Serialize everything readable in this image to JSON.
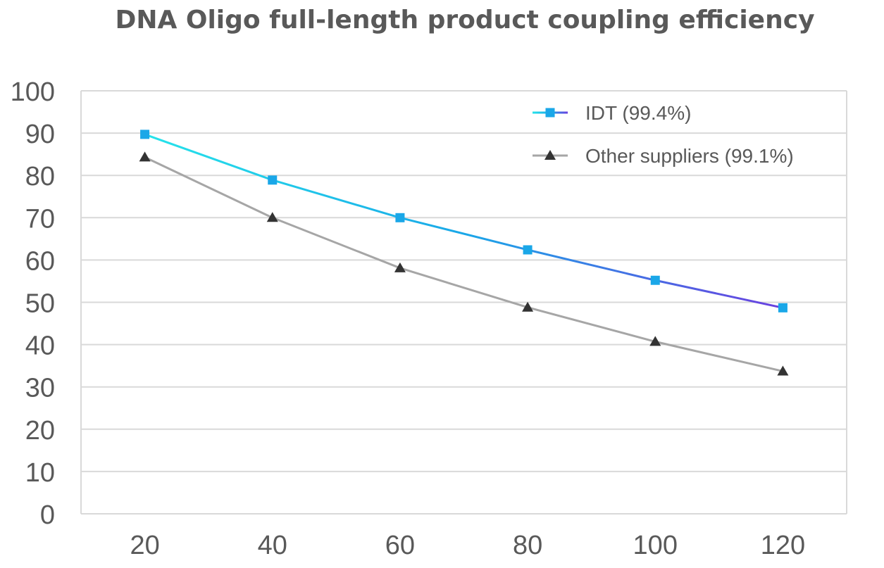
{
  "chart_data": {
    "type": "line",
    "title": "DNA Oligo full-length product coupling efficiency",
    "xlabel": "",
    "ylabel": "",
    "x": [
      20,
      40,
      60,
      80,
      100,
      120
    ],
    "xticks": [
      "20",
      "40",
      "60",
      "80",
      "100",
      "120"
    ],
    "yticks": [
      "0",
      "10",
      "20",
      "30",
      "40",
      "50",
      "60",
      "70",
      "80",
      "90",
      "100"
    ],
    "ylim": [
      0,
      100
    ],
    "grid": true,
    "legend": "top-right",
    "series": [
      {
        "name": "IDT (99.4%)",
        "values": [
          89.7,
          78.9,
          70,
          62.4,
          55.2,
          48.7
        ],
        "marker": "square",
        "marker_color": "#1aa7e8",
        "line_gradient": [
          "#26e3ea",
          "#1aa7e8",
          "#6b3fe0"
        ]
      },
      {
        "name": "Other suppliers (99.1%)",
        "values": [
          84.3,
          70,
          58.1,
          48.8,
          40.7,
          33.7
        ],
        "marker": "triangle",
        "marker_color": "#333333",
        "line_color": "#a6a6a6"
      }
    ],
    "colors": {
      "grid": "#d9d9d9",
      "text": "#595959"
    }
  }
}
